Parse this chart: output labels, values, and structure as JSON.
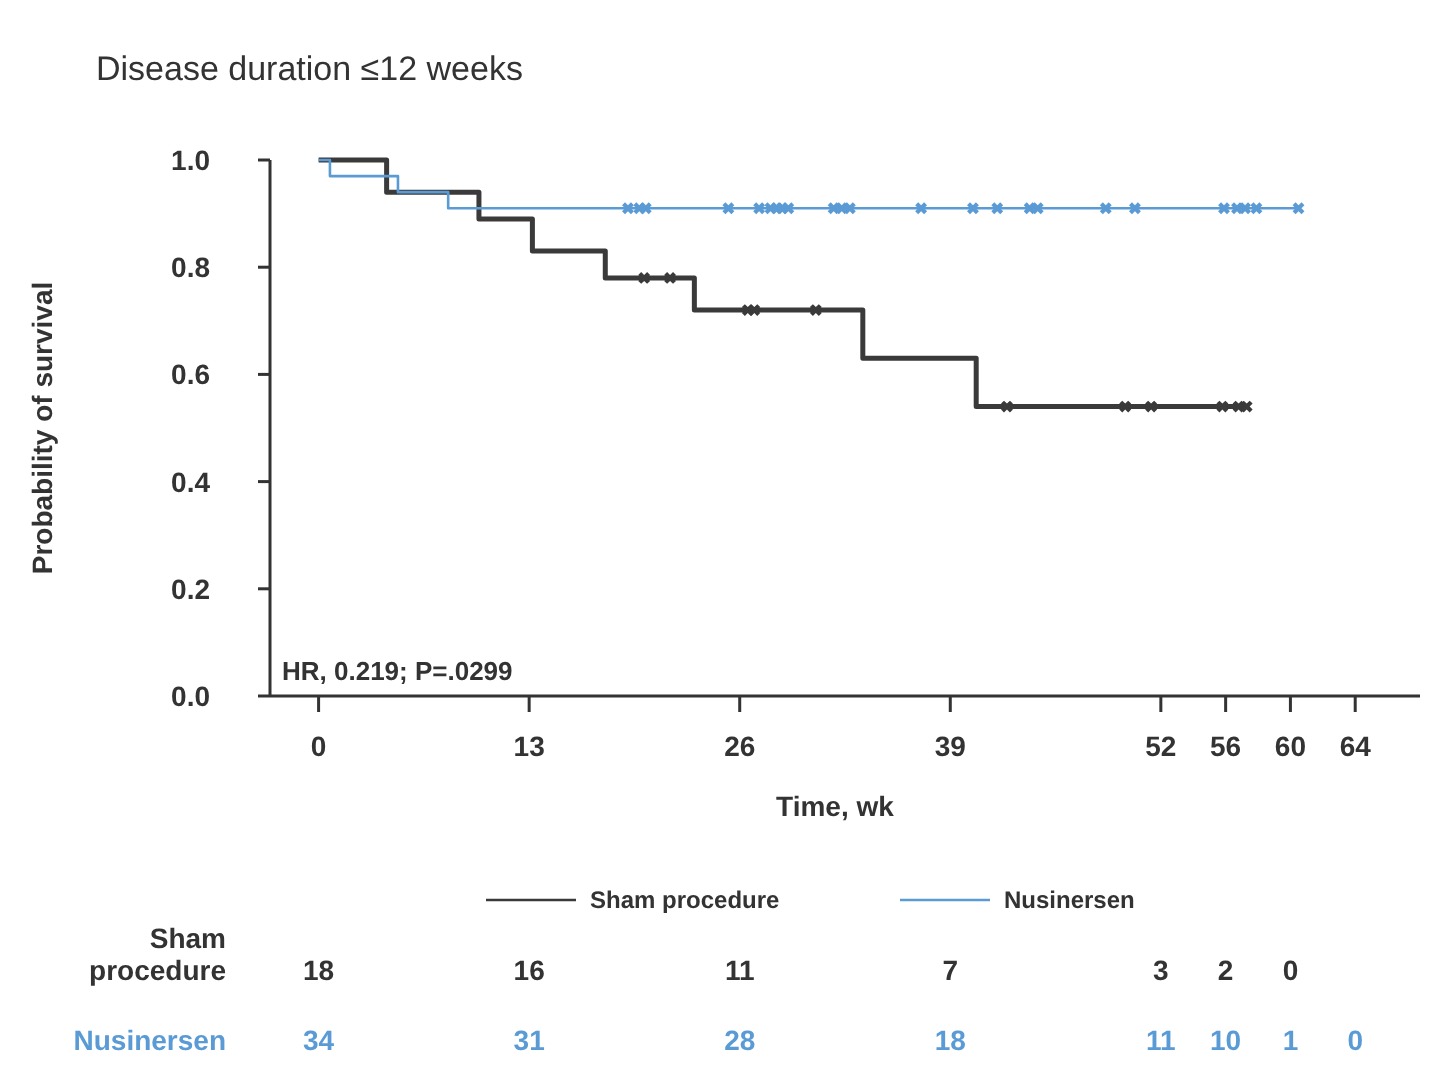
{
  "chart_data": {
    "type": "step",
    "title": "Disease duration ≤12 weeks",
    "xlabel": "Time, wk",
    "ylabel": "Probability of survival",
    "xlim": [
      -3,
      68
    ],
    "xticks": [
      0,
      13,
      26,
      39,
      52,
      56,
      60,
      64
    ],
    "ylim": [
      0,
      1
    ],
    "yticks": [
      {
        "value": 0,
        "label": "0.0"
      },
      0.2,
      0.4,
      0.6,
      0.8,
      {
        "value": 1,
        "label": "1.0"
      }
    ],
    "grid": false,
    "legend": "bottom",
    "series": [
      {
        "name": "Sham procedure",
        "color": "#3a3a3a",
        "x": [
          0,
          4.2,
          9.9,
          13.2,
          17.7,
          23.2,
          33.6,
          40.6,
          57.3
        ],
        "values": [
          1,
          0.94,
          0.89,
          0.83,
          0.78,
          0.72,
          0.63,
          0.54,
          0.54
        ]
      },
      {
        "name": "Nusinersen",
        "color": "#5b9bd5",
        "x": [
          0,
          0.7,
          4.9,
          8.0,
          60.5
        ],
        "values": [
          1,
          0.97,
          0.94,
          0.91,
          0.91
        ]
      },
      {
        "type": "scatter",
        "marker": "cross",
        "color": "#3a3a3a",
        "x": [
          20.1,
          21.7,
          26.5,
          26.9,
          30.7,
          42.5,
          49.8,
          51.4,
          55.8,
          56.8,
          57.3
        ],
        "values": [
          0.78,
          0.78,
          0.72,
          0.72,
          0.72,
          0.54,
          0.54,
          0.54,
          0.54,
          0.54,
          0.54
        ]
      },
      {
        "type": "scatter",
        "marker": "cross",
        "color": "#5b9bd5",
        "x": [
          19.1,
          19.8,
          20.2,
          25.3,
          27.2,
          27.9,
          28.3,
          28.6,
          29,
          31.8,
          32.3,
          32.8,
          37.2,
          40.4,
          41.9,
          43.9,
          44.4,
          48.6,
          50.4,
          55.9,
          56.7,
          57.2,
          57.9,
          60.5
        ],
        "values": [
          0.91,
          0.91,
          0.91,
          0.91,
          0.91,
          0.91,
          0.91,
          0.91,
          0.91,
          0.91,
          0.91,
          0.91,
          0.91,
          0.91,
          0.91,
          0.91,
          0.91,
          0.91,
          0.91,
          0.91,
          0.91,
          0.91,
          0.91,
          0.91
        ]
      }
    ],
    "annotations": [
      "HR, 0.219; P=.0299",
      "18",
      "16",
      "11",
      "7",
      "3",
      "2",
      "0",
      null,
      "34",
      "31",
      "28",
      "18",
      "11",
      "10",
      "1",
      "0"
    ]
  }
}
